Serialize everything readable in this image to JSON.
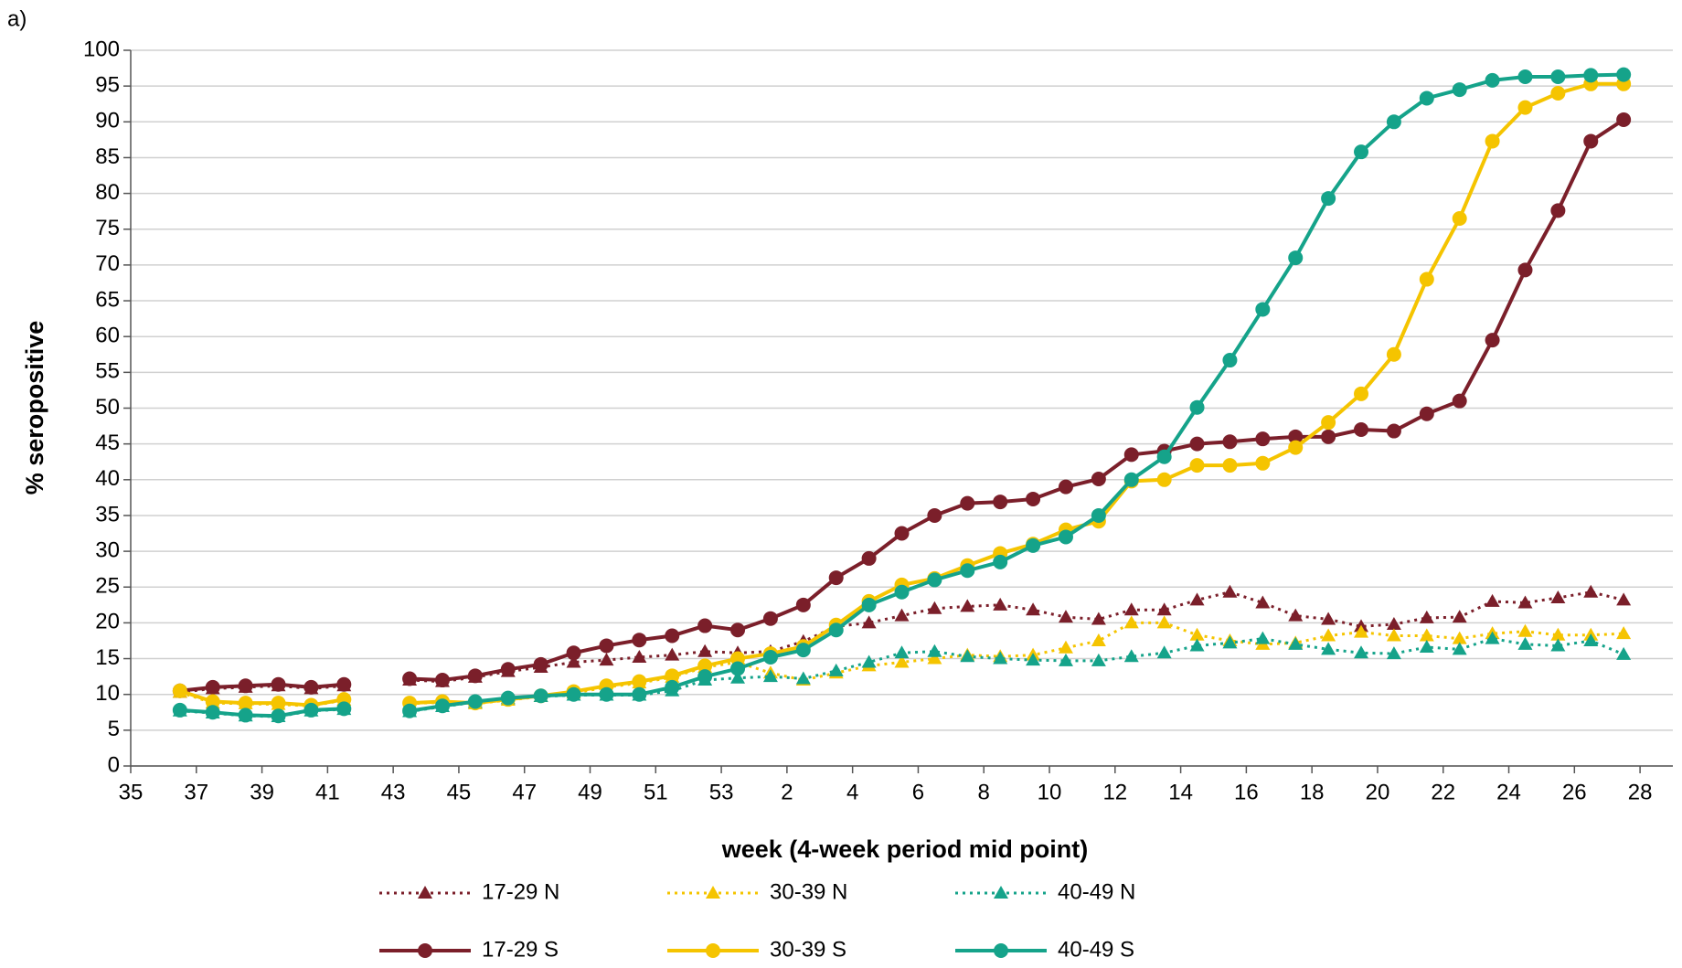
{
  "chart_data": {
    "type": "line",
    "panel_label": "a)",
    "x_label": "week (4-week period mid point)",
    "y_label": "% seropositive",
    "xlim": [
      35,
      82
    ],
    "ylim": [
      0,
      100
    ],
    "xticks": [
      35,
      37,
      39,
      41,
      43,
      45,
      47,
      49,
      51,
      53,
      {
        "value": 55,
        "label": "2"
      },
      {
        "value": 57,
        "label": "4"
      },
      {
        "value": 59,
        "label": "6"
      },
      {
        "value": 61,
        "label": "8"
      },
      {
        "value": 63,
        "label": "10"
      },
      {
        "value": 65,
        "label": "12"
      },
      {
        "value": 67,
        "label": "14"
      },
      {
        "value": 69,
        "label": "16"
      },
      {
        "value": 71,
        "label": "18"
      },
      {
        "value": 73,
        "label": "20"
      },
      {
        "value": 75,
        "label": "22"
      },
      {
        "value": 77,
        "label": "24"
      },
      {
        "value": 79,
        "label": "26"
      },
      {
        "value": 81,
        "label": "28"
      }
    ],
    "yticks": [
      0,
      5,
      10,
      15,
      20,
      25,
      30,
      35,
      40,
      45,
      50,
      55,
      60,
      65,
      70,
      75,
      80,
      85,
      90,
      95,
      100
    ],
    "grid": true,
    "legend_position": "bottom",
    "x": [
      36.5,
      37.5,
      38.5,
      39.5,
      40.5,
      41.5,
      42.5,
      43.5,
      44.5,
      45.5,
      46.5,
      47.5,
      48.5,
      49.5,
      50.5,
      51.5,
      52.5,
      53.5,
      54.5,
      55.5,
      56.5,
      57.5,
      58.5,
      59.5,
      60.5,
      61.5,
      62.5,
      63.5,
      64.5,
      65.5,
      66.5,
      67.5,
      68.5,
      69.5,
      70.5,
      71.5,
      72.5,
      73.5,
      74.5,
      75.5,
      76.5,
      77.5,
      78.5,
      79.5,
      80.5
    ],
    "series": [
      {
        "name": "17-29 N",
        "color": "#7b1f2a",
        "line_style": "dotted",
        "marker": "triangle",
        "values": [
          10.3,
          10.8,
          11,
          11.2,
          10.8,
          11.2,
          null,
          12,
          11.8,
          12.4,
          13.2,
          13.8,
          14.5,
          14.8,
          15.2,
          15.5,
          16,
          15.8,
          16,
          17.4,
          19.5,
          20,
          21,
          22,
          22.3,
          22.5,
          21.8,
          20.8,
          20.5,
          21.8,
          21.8,
          23.2,
          24.3,
          22.8,
          21,
          20.5,
          19.5,
          19.8,
          20.7,
          20.8,
          23,
          22.8,
          23.5,
          24.3,
          23.2
        ]
      },
      {
        "name": "30-39 N",
        "color": "#f5c400",
        "line_style": "dotted",
        "marker": "triangle",
        "values": [
          10.3,
          8.8,
          8.7,
          8.6,
          8.4,
          9.2,
          null,
          8.7,
          8.9,
          8.7,
          9.2,
          9.7,
          10.2,
          11,
          11.6,
          12.4,
          13.8,
          14.5,
          13,
          12,
          13,
          14,
          14.5,
          15,
          15.5,
          15.3,
          15.5,
          16.5,
          17.5,
          20,
          20,
          18.3,
          17.5,
          17,
          17.2,
          18.2,
          18.7,
          18.2,
          18.2,
          17.8,
          18.5,
          18.8,
          18.3,
          18.3,
          18.5
        ]
      },
      {
        "name": "40-49 N",
        "color": "#15a38a",
        "line_style": "dotted",
        "marker": "triangle",
        "values": [
          7.7,
          7.4,
          7,
          6.9,
          7.7,
          7.9,
          null,
          7.6,
          8.3,
          8.9,
          9.4,
          9.7,
          9.9,
          9.9,
          9.9,
          10.5,
          12,
          12.3,
          12.5,
          12.2,
          13.3,
          14.5,
          15.8,
          16,
          15.3,
          15,
          14.8,
          14.7,
          14.7,
          15.3,
          15.8,
          16.8,
          17.2,
          17.8,
          17,
          16.3,
          15.8,
          15.7,
          16.6,
          16.3,
          17.8,
          17,
          16.8,
          17.5,
          15.6
        ]
      },
      {
        "name": "17-29 S",
        "color": "#7b1f2a",
        "line_style": "solid",
        "marker": "circle",
        "values": [
          10.5,
          11,
          11.2,
          11.4,
          11,
          11.4,
          null,
          12.2,
          12,
          12.6,
          13.5,
          14.2,
          15.8,
          16.8,
          17.6,
          18.2,
          19.6,
          19,
          20.6,
          22.5,
          26.3,
          29,
          32.5,
          35,
          36.7,
          36.9,
          37.3,
          39,
          40.1,
          43.5,
          44,
          45,
          45.3,
          45.7,
          46,
          46,
          47,
          46.8,
          49.2,
          51,
          59.5,
          69.3,
          77.6,
          87.3,
          90.3
        ]
      },
      {
        "name": "30-39 S",
        "color": "#f5c400",
        "line_style": "solid",
        "marker": "circle",
        "values": [
          10.5,
          9,
          8.8,
          8.8,
          8.5,
          9.3,
          null,
          8.8,
          9,
          8.8,
          9.3,
          9.8,
          10.4,
          11.2,
          11.8,
          12.6,
          14,
          15,
          15.7,
          16.7,
          19.7,
          23,
          25.3,
          26.2,
          28,
          29.7,
          31,
          33,
          34.2,
          39.8,
          40,
          42,
          42,
          42.3,
          44.5,
          48,
          52,
          57.5,
          68,
          76.5,
          87.3,
          92,
          94,
          95.3,
          95.3
        ]
      },
      {
        "name": "40-49 S",
        "color": "#15a38a",
        "line_style": "solid",
        "marker": "circle",
        "values": [
          7.8,
          7.5,
          7.1,
          7,
          7.8,
          8,
          null,
          7.7,
          8.4,
          9,
          9.5,
          9.8,
          10,
          10,
          10,
          11,
          12.5,
          13.6,
          15.2,
          16.2,
          19,
          22.5,
          24.3,
          26,
          27.3,
          28.5,
          30.8,
          32,
          35,
          40,
          43.2,
          50.1,
          56.7,
          63.8,
          71,
          79.3,
          85.8,
          90,
          93.3,
          94.5,
          95.8,
          96.3,
          96.3,
          96.5,
          96.6
        ]
      }
    ]
  }
}
